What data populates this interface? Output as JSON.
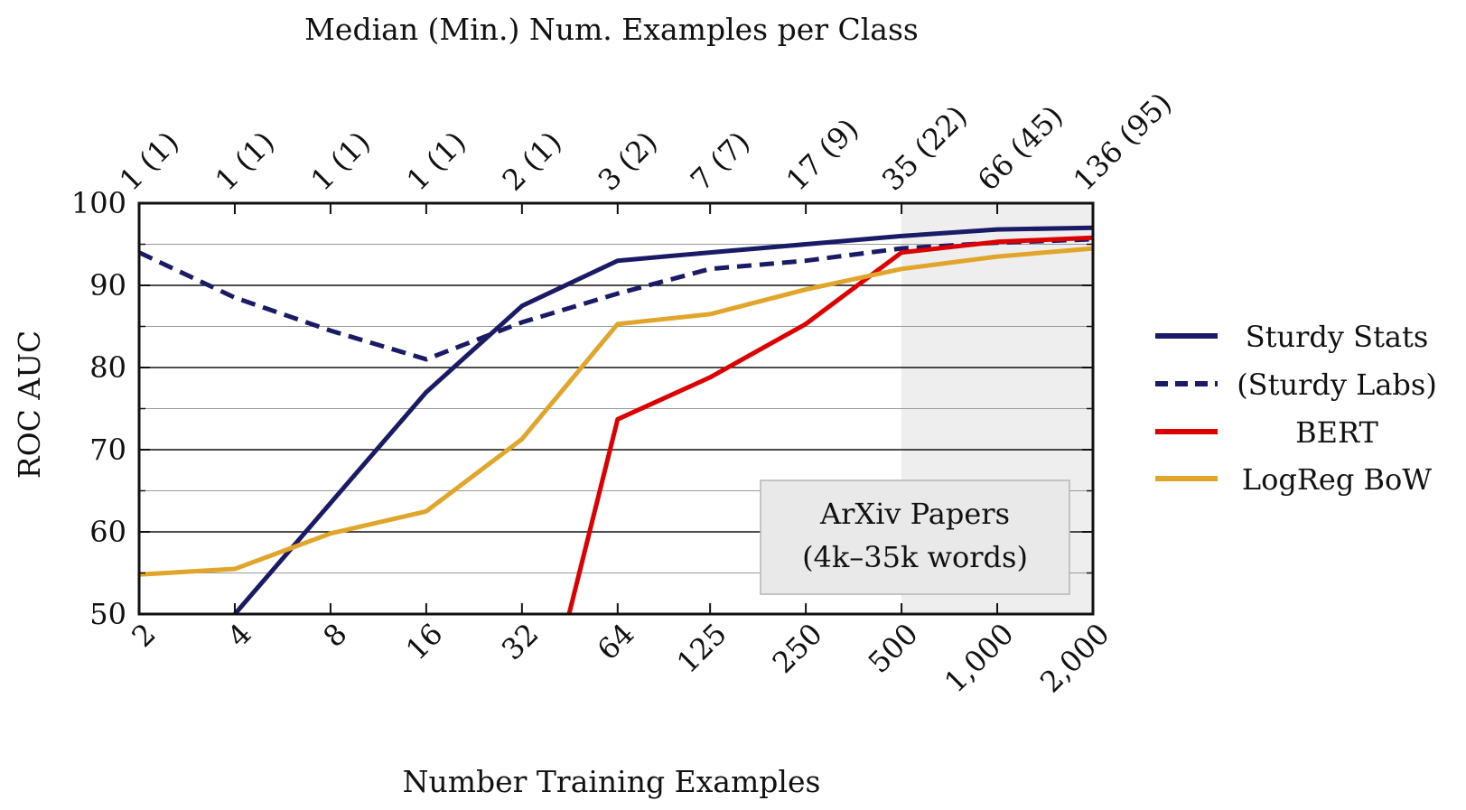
{
  "chart_data": {
    "type": "line",
    "top_title": "Median (Min.) Num. Examples per Class",
    "xlabel": "Number Training Examples",
    "ylabel": "ROC AUC",
    "x_scale": "log2",
    "x": [
      2,
      4,
      8,
      16,
      32,
      64,
      125,
      250,
      500,
      1000,
      2000
    ],
    "x_tick_labels": [
      "2",
      "4",
      "8",
      "16",
      "32",
      "64",
      "125",
      "250",
      "500",
      "1,000",
      "2,000"
    ],
    "top_tick_labels": [
      "1 (1)",
      "1 (1)",
      "1 (1)",
      "1 (1)",
      "2 (1)",
      "3 (2)",
      "7 (7)",
      "17 (9)",
      "35 (22)",
      "66 (45)",
      "136 (95)"
    ],
    "ylim": [
      50,
      100
    ],
    "y_ticks": [
      50,
      60,
      70,
      80,
      90,
      100
    ],
    "grid": true,
    "shaded_region_x": [
      500,
      2000
    ],
    "annotation": [
      "ArXiv Papers",
      "(4k–35k words)"
    ],
    "legend_position": "right",
    "series": [
      {
        "name": "Sturdy Stats",
        "color": "#1a1a66",
        "style": "solid",
        "x": [
          4,
          8,
          16,
          32,
          64,
          125,
          250,
          500,
          1000,
          2000
        ],
        "values": [
          50,
          63.5,
          77,
          87.5,
          93,
          94,
          95,
          96,
          96.8,
          97
        ]
      },
      {
        "name": "(Sturdy Labs)",
        "color": "#1a1a66",
        "style": "dashed",
        "x": [
          2,
          4,
          8,
          16,
          32,
          64,
          125,
          250,
          500,
          1000,
          2000
        ],
        "values": [
          94,
          88.5,
          84.5,
          81,
          85.5,
          89,
          92,
          93,
          94.5,
          95.2,
          95.6
        ]
      },
      {
        "name": "BERT",
        "color": "#dd0000",
        "style": "solid",
        "x": [
          45,
          64,
          125,
          250,
          500,
          1000,
          2000
        ],
        "values": [
          50,
          73.7,
          78.8,
          85.3,
          94,
          95.3,
          95.8
        ]
      },
      {
        "name": "LogReg BoW",
        "color": "#e0a52a",
        "style": "solid",
        "x": [
          2,
          4,
          8,
          16,
          32,
          64,
          125,
          250,
          500,
          1000,
          2000
        ],
        "values": [
          54.8,
          55.5,
          59.8,
          62.5,
          71.3,
          85.3,
          86.5,
          89.5,
          92,
          93.5,
          94.5
        ]
      }
    ]
  }
}
